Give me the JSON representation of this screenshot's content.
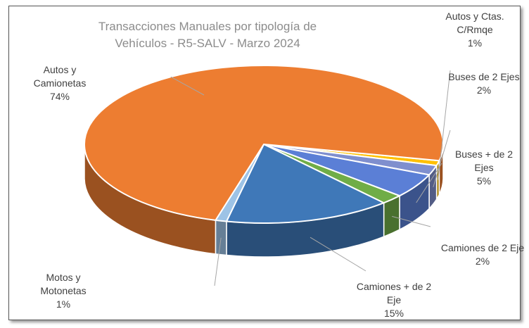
{
  "chart_data": {
    "type": "pie3d",
    "title": "Transacciones Manuales por tipología de Vehículos - R5-SALV - Marzo 2024",
    "categories": [
      "Autos y Ctas. C/Rmqe",
      "Buses de 2 Ejes",
      "Buses + de 2 Ejes",
      "Camiones de 2 Eje",
      "Camiones + de 2 Eje",
      "Motos y Motonetas",
      "Autos y Camionetas"
    ],
    "values": [
      1,
      2,
      5,
      2,
      15,
      1,
      74
    ],
    "value_labels": [
      "1%",
      "2%",
      "5%",
      "2%",
      "15%",
      "1%",
      "74%"
    ],
    "colors": [
      "#ffc000",
      "#7f8fce",
      "#5b7fd6",
      "#70ad47",
      "#3f78b8",
      "#9dc3e6",
      "#ed7d31"
    ]
  }
}
